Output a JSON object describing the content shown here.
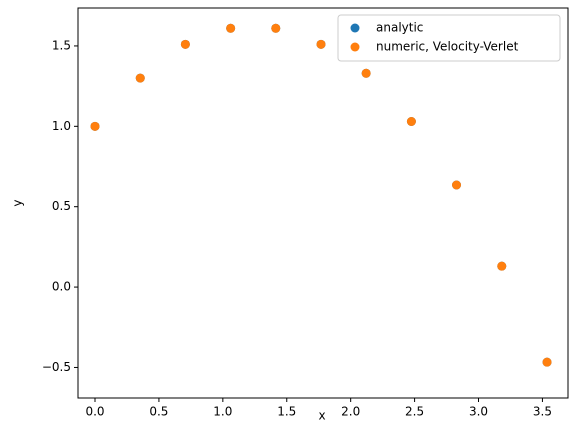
{
  "chart_data": {
    "type": "scatter",
    "x_label": "x",
    "y_label": "y",
    "x": [
      0,
      0.354,
      0.707,
      1.061,
      1.414,
      1.768,
      2.121,
      2.475,
      2.828,
      3.182,
      3.536
    ],
    "series": [
      {
        "name": "analytic",
        "color": "#1f77b4",
        "values": [
          1.0,
          1.3,
          1.51,
          1.61,
          1.61,
          1.51,
          1.33,
          1.03,
          0.635,
          0.13,
          -0.467
        ]
      },
      {
        "name": "numeric, Velocity-Verlet",
        "color": "#ff7f0e",
        "values": [
          1.0,
          1.3,
          1.51,
          1.61,
          1.61,
          1.51,
          1.33,
          1.03,
          0.635,
          0.13,
          -0.467
        ]
      }
    ],
    "xlim": [
      -0.133,
      3.7
    ],
    "ylim": [
      -0.69,
      1.736
    ],
    "xticks": [
      {
        "value": 0,
        "label": "0.0"
      },
      {
        "value": 0.5,
        "label": "0.5"
      },
      {
        "value": 1,
        "label": "1.0"
      },
      {
        "value": 1.5,
        "label": "1.5"
      },
      {
        "value": 2,
        "label": "2.0"
      },
      {
        "value": 2.5,
        "label": "2.5"
      },
      {
        "value": 3,
        "label": "3.0"
      },
      {
        "value": 3.5,
        "label": "3.5"
      }
    ],
    "yticks": [
      {
        "value": -0.5,
        "label": "−0.5"
      },
      {
        "value": 0,
        "label": "0.0"
      },
      {
        "value": 0.5,
        "label": "0.5"
      },
      {
        "value": 1,
        "label": "1.0"
      },
      {
        "value": 1.5,
        "label": "1.5"
      }
    ],
    "grid": false,
    "legend": "upper right"
  }
}
